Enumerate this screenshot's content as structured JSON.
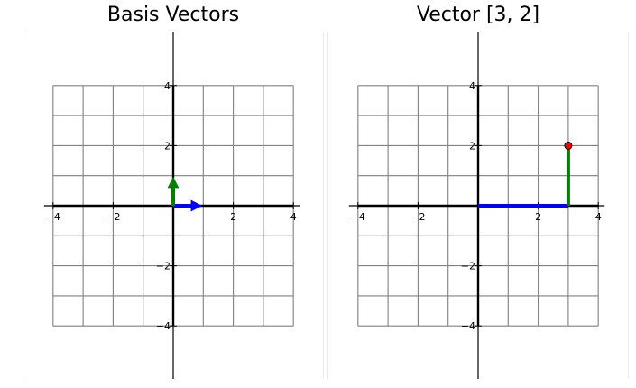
{
  "chart_data": [
    {
      "type": "line",
      "title": "Basis Vectors",
      "xlabel": "",
      "ylabel": "",
      "xlim": [
        -4,
        4
      ],
      "ylim": [
        -4,
        4
      ],
      "xticks": [
        -4,
        -2,
        2,
        4
      ],
      "yticks": [
        -4,
        -2,
        2,
        4
      ],
      "grid_lines": [
        -4,
        -3,
        -2,
        -1,
        0,
        1,
        2,
        3,
        4
      ],
      "legend": "none",
      "vectors": [
        {
          "from": [
            0,
            0
          ],
          "to": [
            1,
            0
          ],
          "color": "#0000ff",
          "arrow": true
        },
        {
          "from": [
            0,
            0
          ],
          "to": [
            0,
            1
          ],
          "color": "#008000",
          "arrow": true
        }
      ],
      "points": []
    },
    {
      "type": "line",
      "title": "Vector [3, 2]",
      "xlabel": "",
      "ylabel": "",
      "xlim": [
        -4,
        4
      ],
      "ylim": [
        -4,
        4
      ],
      "xticks": [
        -4,
        -2,
        2,
        4
      ],
      "yticks": [
        -4,
        -2,
        2,
        4
      ],
      "grid_lines": [
        -4,
        -3,
        -2,
        -1,
        0,
        1,
        2,
        3,
        4
      ],
      "legend": "none",
      "vectors": [
        {
          "from": [
            0,
            0
          ],
          "to": [
            3,
            0
          ],
          "color": "#0000ff",
          "arrow": false
        },
        {
          "from": [
            3,
            0
          ],
          "to": [
            3,
            2
          ],
          "color": "#008000",
          "arrow": false
        }
      ],
      "points": [
        {
          "x": 3,
          "y": 2,
          "color": "#ff0000"
        }
      ]
    }
  ]
}
